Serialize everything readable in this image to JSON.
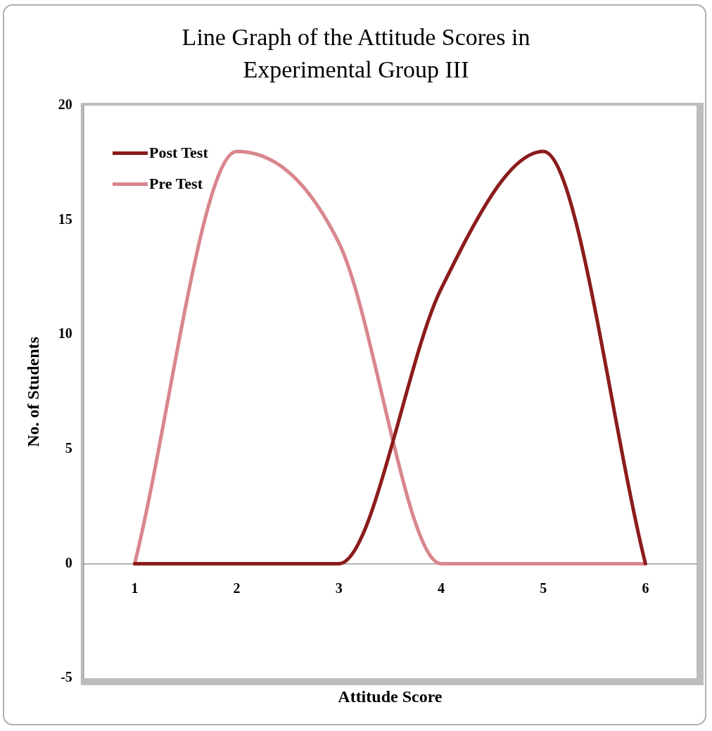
{
  "chart_data": {
    "type": "line",
    "title": "Line Graph of the Attitude Scores in Experimental Group III",
    "xlabel": "Attitude Score",
    "ylabel": "No. of Students",
    "categories": [
      "1",
      "2",
      "3",
      "4",
      "5",
      "6"
    ],
    "series": [
      {
        "name": "Post Test",
        "color": "#8b1c1c",
        "values": [
          0,
          0,
          0,
          12,
          18,
          0
        ]
      },
      {
        "name": "Pre Test",
        "color": "#d9868e",
        "values": [
          0,
          18,
          14,
          0,
          0,
          0
        ]
      }
    ],
    "ylim": [
      -5,
      20
    ],
    "yticks": [
      -5,
      0,
      5,
      10,
      15,
      20
    ],
    "grid": false,
    "legend": "top left",
    "marker": "none",
    "line_style": "solid"
  }
}
